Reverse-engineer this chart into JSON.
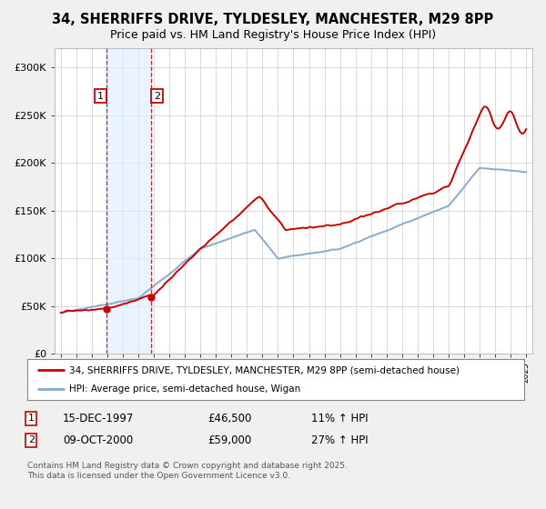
{
  "title": "34, SHERRIFFS DRIVE, TYLDESLEY, MANCHESTER, M29 8PP",
  "subtitle": "Price paid vs. HM Land Registry's House Price Index (HPI)",
  "legend_line1": "34, SHERRIFFS DRIVE, TYLDESLEY, MANCHESTER, M29 8PP (semi-detached house)",
  "legend_line2": "HPI: Average price, semi-detached house, Wigan",
  "annotation1_date": "15-DEC-1997",
  "annotation1_price": 46500,
  "annotation1_hpi": "11% ↑ HPI",
  "annotation2_date": "09-OCT-2000",
  "annotation2_price": 59000,
  "annotation2_hpi": "27% ↑ HPI",
  "footnote": "Contains HM Land Registry data © Crown copyright and database right 2025.\nThis data is licensed under the Open Government Licence v3.0.",
  "price_color": "#cc0000",
  "hpi_color": "#88aacc",
  "annotation_box_color": "#cc0000",
  "vline_color": "#cc0000",
  "shading_color": "#ddeeff",
  "ylim": [
    0,
    320000
  ],
  "yticks": [
    0,
    50000,
    100000,
    150000,
    200000,
    250000,
    300000
  ],
  "ytick_labels": [
    "£0",
    "£50K",
    "£100K",
    "£150K",
    "£200K",
    "£250K",
    "£300K"
  ],
  "background_color": "#f0f0f0",
  "plot_bg_color": "#ffffff",
  "t1": 1997.958,
  "t2": 2000.792
}
